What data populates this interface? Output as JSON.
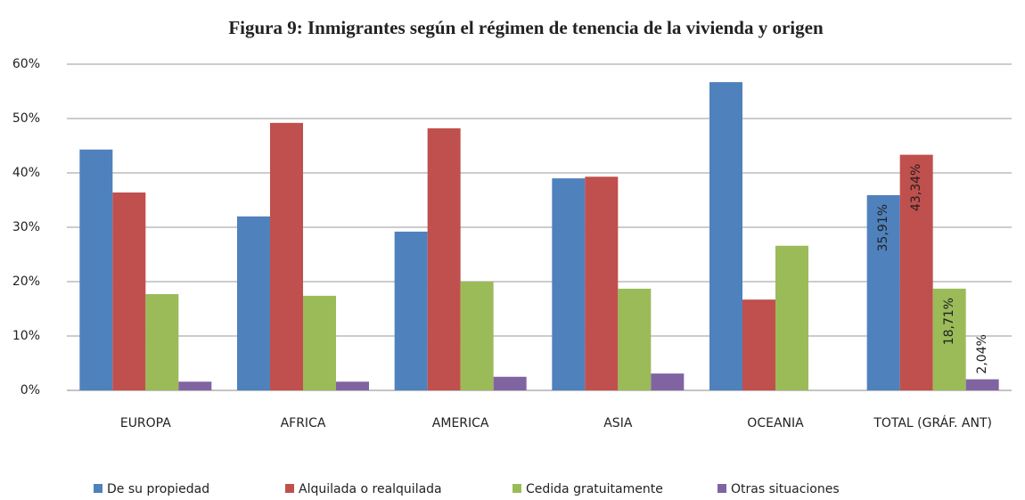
{
  "chart_data": {
    "type": "bar",
    "title": "Figura  9: Inmigrantes  según el régimen  de tenencia de la vivienda  y origen",
    "categories": [
      "EUROPA",
      "AFRICA",
      "AMERICA",
      "ASIA",
      "OCEANIA",
      "TOTAL (GRÁF. ANT)"
    ],
    "series": [
      {
        "name": "De su propiedad",
        "color": "#4f81bd",
        "values": [
          44.3,
          32.0,
          29.2,
          39.0,
          56.7,
          35.91
        ],
        "value_labels": [
          null,
          null,
          null,
          null,
          null,
          "35,91%"
        ]
      },
      {
        "name": "Alquilada o realquilada",
        "color": "#c0504d",
        "values": [
          36.4,
          49.2,
          48.2,
          39.3,
          16.7,
          43.34
        ],
        "value_labels": [
          null,
          null,
          null,
          null,
          null,
          "43,34%"
        ]
      },
      {
        "name": "Cedida gratuitamente",
        "color": "#9bbb59",
        "values": [
          17.7,
          17.4,
          20.0,
          18.7,
          26.6,
          18.71
        ],
        "value_labels": [
          null,
          null,
          null,
          null,
          null,
          "18,71%"
        ]
      },
      {
        "name": "Otras situaciones",
        "color": "#8064a2",
        "values": [
          1.6,
          1.6,
          2.5,
          3.1,
          0,
          2.04
        ],
        "value_labels": [
          null,
          null,
          null,
          null,
          null,
          "2,04%"
        ]
      }
    ],
    "ylim": [
      0,
      60
    ],
    "yticks": [
      {
        "value": 0,
        "label": "0%"
      },
      {
        "value": 10,
        "label": "10%"
      },
      {
        "value": 20,
        "label": "20%"
      },
      {
        "value": 30,
        "label": "30%"
      },
      {
        "value": 40,
        "label": "40%"
      },
      {
        "value": 50,
        "label": "50%"
      },
      {
        "value": 60,
        "label": "60%"
      }
    ],
    "grid": true,
    "legend": "bottom"
  }
}
